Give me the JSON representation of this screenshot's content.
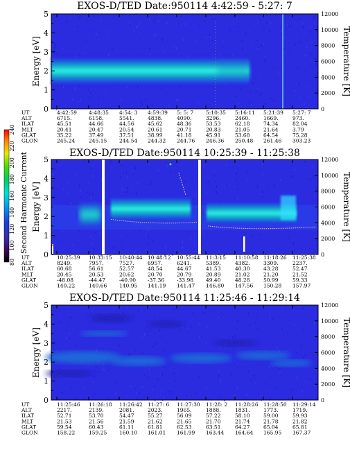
{
  "chart_data": [
    {
      "type": "heatmap",
      "title": "EXOS-D/TED   Date:950114   4:42:59 - 5:27: 7",
      "ylabel": "Energy [eV]",
      "y2label": "Temperature [K]",
      "ylim": [
        0,
        5
      ],
      "yticks": [
        "0",
        "1",
        "2",
        "3",
        "4",
        "5"
      ],
      "y2lim": [
        0,
        12000
      ],
      "y2ticks": [
        "0",
        "2000",
        "4000",
        "6000",
        "8000",
        "10000",
        "12000"
      ],
      "band": {
        "center_ev": 2.0,
        "width_ev": 1.0,
        "ends_fraction": 0.78
      },
      "table": {
        "labels": [
          "UT",
          "ALT",
          "ILAT",
          "MLT",
          "GLAT",
          "GLON"
        ],
        "columns": [
          [
            "4:42:59",
            "6715.",
            "45.51",
            "20.41",
            "35.22",
            "245.24"
          ],
          [
            "4:48:35",
            "6158.",
            "44.66",
            "20.47",
            "37.49",
            "245.15"
          ],
          [
            "4:54: 3",
            "5541.",
            "44.56",
            "20.54",
            "37.51",
            "244.54"
          ],
          [
            "4:59:39",
            "4838.",
            "45.62",
            "20.61",
            "38.99",
            "244.32"
          ],
          [
            "5: 5: 7",
            "4090.",
            "48.36",
            "20.71",
            "41.18",
            "244.76"
          ],
          [
            "5:10:35",
            "3296.",
            "53.53",
            "20.83",
            "45.91",
            "246.36"
          ],
          [
            "5:16:11",
            "2460.",
            "62.18",
            "21.05",
            "53.68",
            "250.48"
          ],
          [
            "5:21:39",
            "1669.",
            "74.34",
            "21.64",
            "64.54",
            "261.46"
          ],
          [
            "5:27: 7",
            "973.",
            "82.04",
            "3.79",
            "75.28",
            "303.23"
          ]
        ]
      }
    },
    {
      "type": "heatmap",
      "title": "EXOS-D/TED   Date:950114   10:25:39 - 11:25:38",
      "ylabel": "Energy [eV]",
      "y2label": "Temperature [K]",
      "ylim": [
        0,
        5
      ],
      "yticks": [
        "0",
        "1",
        "2",
        "3",
        "4",
        "5"
      ],
      "y2lim": [
        0,
        12000
      ],
      "y2ticks": [
        "0",
        "2000",
        "4000",
        "6000",
        "8000",
        "10000",
        "12000"
      ],
      "colorbar": {
        "label": "Second Harmonic Current",
        "min": 80,
        "max": 240,
        "ticks": [
          "80",
          "100",
          "120",
          "140",
          "160",
          "180",
          "200",
          "220",
          "240"
        ]
      },
      "table": {
        "labels": [
          "UT",
          "ALT",
          "ILAT",
          "MLT",
          "GLAT",
          "GLON"
        ],
        "columns": [
          [
            "10:25:39",
            "8249.",
            "60.68",
            "20.45",
            "-48.08",
            "140.22"
          ],
          [
            "10:33:15",
            "7957.",
            "56.61",
            "20.53",
            "-44.47",
            "140.66"
          ],
          [
            "10:40:44",
            "7527.",
            "52.57",
            "20.62",
            "-40.90",
            "140.95"
          ],
          [
            "10:48:12",
            "6957.",
            "48.54",
            "20.70",
            "-37.36",
            "141.19"
          ],
          [
            "10:55:44",
            "6241.",
            "44.67",
            "20.79",
            "-33.98",
            "141.47"
          ],
          [
            "11:3:15",
            "5389.",
            "41.53",
            "20.89",
            "49.40",
            "146.80"
          ],
          [
            "11:10:58",
            "4382.",
            "40.30",
            "21.02",
            "48.28",
            "147.56"
          ],
          [
            "11:18:26",
            "3309.",
            "43.28",
            "21.20",
            "50.99",
            "150.28"
          ],
          [
            "11:25:38",
            "2237.",
            "52.47",
            "21.52",
            "59.33",
            "157.97"
          ]
        ]
      }
    },
    {
      "type": "heatmap",
      "title": "EXOS-D/TED   Date:950114   11:25:46 - 11:29:14",
      "ylabel": "Energy [eV]",
      "y2label": "Temperature [K]",
      "ylim": [
        0,
        5
      ],
      "yticks": [
        "0",
        "1",
        "2",
        "3",
        "4",
        "5"
      ],
      "y2lim": [
        0,
        12000
      ],
      "y2ticks": [
        "0",
        "2000",
        "4000",
        "6000",
        "8000",
        "10000",
        "12000"
      ],
      "table": {
        "labels": [
          "UT",
          "ALT",
          "ILAT",
          "MLT",
          "GLAT",
          "GLON"
        ],
        "columns": [
          [
            "11:25:46",
            "2217.",
            "52.71",
            "21.53",
            "59.54",
            "158.22"
          ],
          [
            "11:26:18",
            "2139.",
            "53.70",
            "21.56",
            "60.43",
            "159.25"
          ],
          [
            "11:26:42",
            "2081.",
            "54.47",
            "21.59",
            "61.11",
            "160.10"
          ],
          [
            "11:27: 6",
            "2023.",
            "55.27",
            "21.62",
            "61.81",
            "161.01"
          ],
          [
            "11:27:30",
            "1965.",
            "56.09",
            "21.65",
            "62.53",
            "161.99"
          ],
          [
            "11:28: 2",
            "1888.",
            "57.22",
            "21.70",
            "63.51",
            "163.44"
          ],
          [
            "11:28:26",
            "1831.",
            "58.10",
            "21.74",
            "64.27",
            "164.64"
          ],
          [
            "11:28:50",
            "1773.",
            "59.00",
            "21.78",
            "65.04",
            "165.95"
          ],
          [
            "11:29:14",
            "1719.",
            "59.93",
            "21.82",
            "65.81",
            "167.37"
          ]
        ]
      }
    }
  ]
}
